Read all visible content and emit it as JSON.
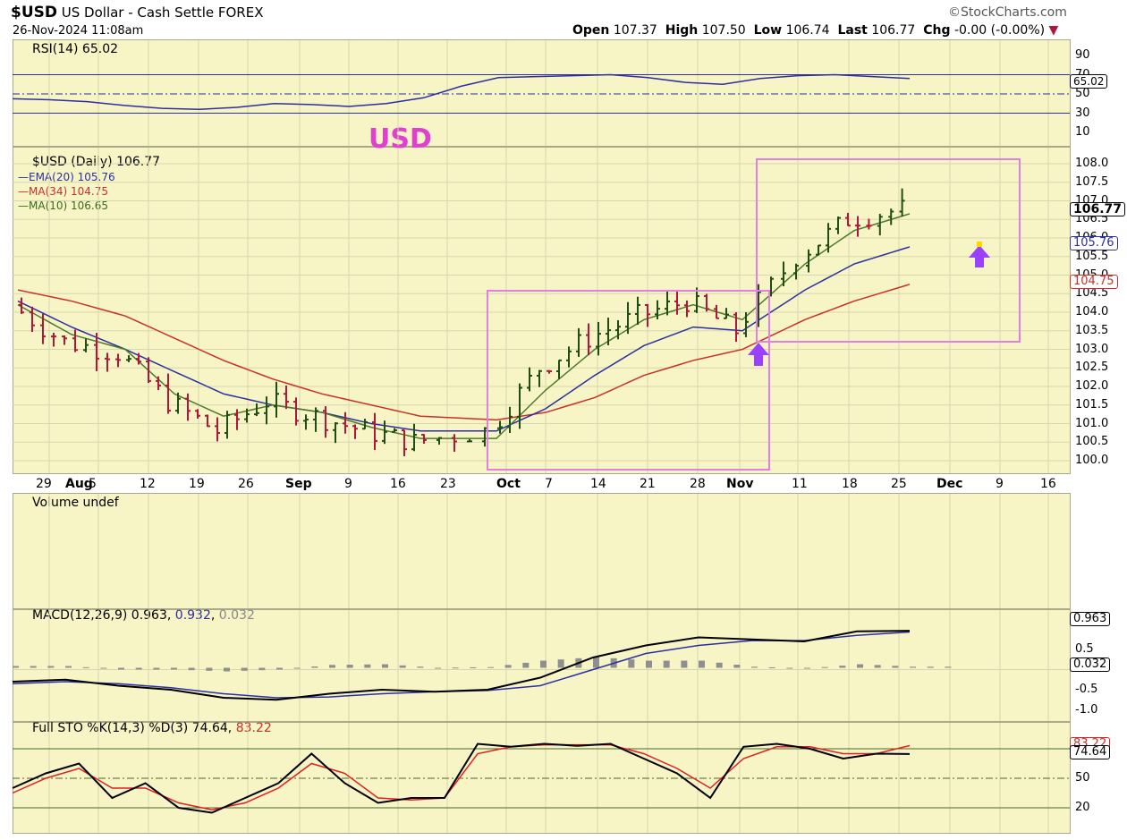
{
  "header": {
    "symbol": "$USD",
    "name": "US Dollar - Cash Settle",
    "exchange": "FOREX",
    "watermark": "©StockCharts.com",
    "datetime": "26-Nov-2024 11:08am",
    "open_label": "Open",
    "open": "107.37",
    "high_label": "High",
    "high": "107.50",
    "low_label": "Low",
    "low": "106.74",
    "last_label": "Last",
    "last": "106.77",
    "chg_label": "Chg",
    "chg": "-0.00 (-0.00%)"
  },
  "annotation": "USD",
  "colors": {
    "panel_bg": "#f7f4c6",
    "up_bar": "#1f4d14",
    "down_bar": "#b0163a",
    "ema": "#2b2fa0",
    "ma34": "#c8302c",
    "ma10": "#4d7a2a",
    "box": "#e080e0",
    "arrow": "#9a40ff"
  },
  "rsi": {
    "label": "RSI(14) 65.02",
    "value_tag": "65.02",
    "ticks": [
      "90",
      "70",
      "50",
      "30",
      "10"
    ]
  },
  "price": {
    "title": "$USD (Daily) 106.77",
    "legend": [
      {
        "name": "EMA(20)",
        "value": "105.76"
      },
      {
        "name": "MA(34)",
        "value": "104.75"
      },
      {
        "name": "MA(10)",
        "value": "106.65"
      }
    ],
    "ticks": [
      "108.0",
      "107.5",
      "107.0",
      "106.5",
      "106.0",
      "105.5",
      "105.0",
      "104.5",
      "104.0",
      "103.5",
      "103.0",
      "102.5",
      "102.0",
      "101.5",
      "101.0",
      "100.5",
      "100.0"
    ],
    "last_tag": "106.77",
    "ema_tag": "105.76",
    "ma_tag": "104.75"
  },
  "xaxis": [
    "29",
    "Aug",
    "5",
    "12",
    "19",
    "26",
    "Sep",
    "9",
    "16",
    "23",
    "Oct",
    "7",
    "14",
    "21",
    "28",
    "Nov",
    "11",
    "18",
    "25",
    "Dec",
    "9",
    "16"
  ],
  "volume": {
    "label": "Volume undef"
  },
  "macd": {
    "label": "MACD(12,26,9)",
    "v1": "0.963",
    "v2": "0.932",
    "v3": "0.032",
    "ticks": [
      "0.5",
      "-0.5",
      "-1.0"
    ],
    "tag1": "0.963",
    "tag2": "0.032"
  },
  "sto": {
    "label": "Full STO %K(14,3) %D(3)",
    "k": "74.64",
    "d": "83.22",
    "ticks": [
      "50",
      "20"
    ],
    "tag_d": "83.22",
    "tag_k": "74.64"
  },
  "chart_data": {
    "type": "line",
    "title": "$USD (Daily) 106.77",
    "x_dates": [
      "2024-07-29",
      "2024-08-05",
      "2024-08-12",
      "2024-08-19",
      "2024-08-26",
      "2024-09-03",
      "2024-09-09",
      "2024-09-16",
      "2024-09-23",
      "2024-10-01",
      "2024-10-07",
      "2024-10-14",
      "2024-10-21",
      "2024-10-28",
      "2024-11-01",
      "2024-11-11",
      "2024-11-18",
      "2024-11-25"
    ],
    "series": [
      {
        "name": "$USD",
        "values": [
          104.2,
          103.2,
          102.9,
          101.6,
          100.8,
          101.6,
          101.2,
          100.8,
          100.5,
          100.8,
          102.5,
          103.3,
          103.9,
          104.3,
          103.5,
          105.5,
          106.5,
          106.77
        ]
      },
      {
        "name": "EMA(20)",
        "values": [
          104.3,
          103.6,
          103.0,
          102.4,
          101.8,
          101.5,
          101.3,
          101.0,
          100.8,
          100.8,
          101.4,
          102.3,
          103.1,
          103.6,
          103.5,
          104.6,
          105.3,
          105.76
        ]
      },
      {
        "name": "MA(34)",
        "values": [
          104.6,
          104.3,
          103.9,
          103.3,
          102.7,
          102.2,
          101.8,
          101.5,
          101.2,
          101.1,
          101.3,
          101.7,
          102.3,
          102.7,
          103.0,
          103.8,
          104.3,
          104.75
        ]
      },
      {
        "name": "MA(10)",
        "values": [
          104.2,
          103.4,
          103.0,
          101.8,
          101.2,
          101.5,
          101.3,
          100.9,
          100.6,
          100.6,
          101.9,
          103.0,
          103.8,
          104.2,
          103.8,
          105.3,
          106.2,
          106.65
        ]
      }
    ],
    "ylim": [
      99.8,
      108.3
    ],
    "grid": true,
    "legend": "top-left"
  }
}
